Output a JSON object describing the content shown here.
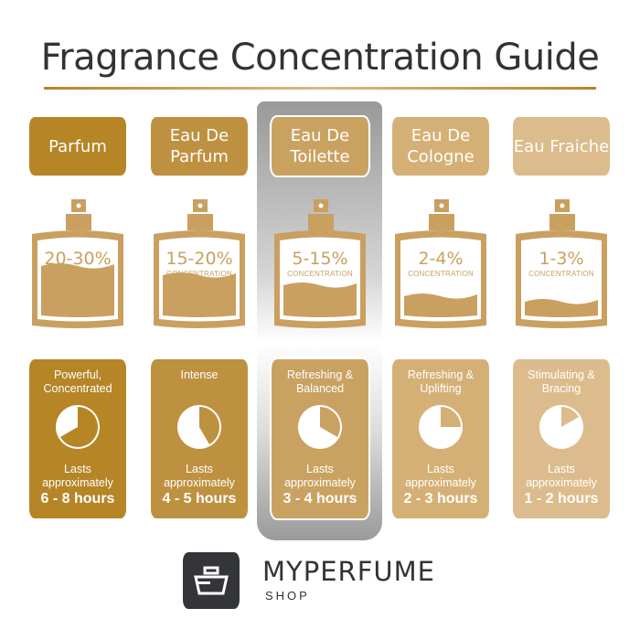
{
  "title": "Fragrance Concentration Guide",
  "highlighted_index": 2,
  "colors": {
    "title": "#333333",
    "bottle": "#c9a060",
    "accent": "#b58526"
  },
  "columns": [
    {
      "name": "Parfum",
      "percent": "20-30%",
      "concentration_label": "CONCENTRATION",
      "fill_level": 0.45,
      "description": "Powerful, Concentrated",
      "lasts_label": "Lasts approximately",
      "hours": "6 - 8 hours",
      "clock_hours": 8,
      "color": "#b58526"
    },
    {
      "name": "Eau De Parfum",
      "percent": "15-20%",
      "concentration_label": "CONCENTRATION",
      "fill_level": 0.35,
      "description": "Intense",
      "lasts_label": "Lasts approximately",
      "hours": "4 - 5 hours",
      "clock_hours": 5,
      "color": "#be9140"
    },
    {
      "name": "Eau De Toilette",
      "percent": "5-15%",
      "concentration_label": "CONCENTRATION",
      "fill_level": 0.24,
      "description": "Refreshing & Balanced",
      "lasts_label": "Lasts approximately",
      "hours": "3 - 4 hours",
      "clock_hours": 4,
      "color": "#c9a262"
    },
    {
      "name": "Eau De Cologne",
      "percent": "2-4%",
      "concentration_label": "CONCENTRATION",
      "fill_level": 0.12,
      "description": "Refreshing & Uplifting",
      "lasts_label": "Lasts approximately",
      "hours": "2 - 3 hours",
      "clock_hours": 3,
      "color": "#d5b076"
    },
    {
      "name": "Eau Fraiche",
      "percent": "1-3%",
      "concentration_label": "CONCENTRATION",
      "fill_level": 0.06,
      "description": "Stimulating & Bracing",
      "lasts_label": "Lasts approximately",
      "hours": "1 - 2 hours",
      "clock_hours": 2,
      "color": "#dcbc8c"
    }
  ],
  "brand": {
    "name": "MYPERFUME",
    "sub": "SHOP"
  }
}
